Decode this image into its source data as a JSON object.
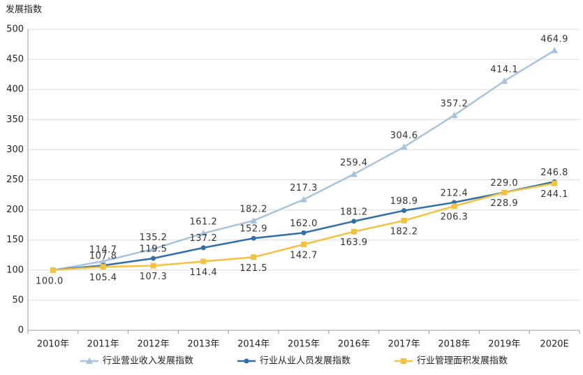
{
  "chart_data": {
    "type": "line",
    "y_axis_title": "发展指数",
    "categories": [
      "2010年",
      "2011年",
      "2012年",
      "2013年",
      "2014年",
      "2015年",
      "2016年",
      "2017年",
      "2018年",
      "2019年",
      "2020E"
    ],
    "ylim": [
      0,
      500
    ],
    "yticks": [
      0,
      50,
      100,
      150,
      200,
      250,
      300,
      350,
      400,
      450,
      500
    ],
    "grid": true,
    "legend": "bottom",
    "series": [
      {
        "name": "行业营业收入发展指数",
        "color": "#a8c3e0",
        "marker": "triangle",
        "values": [
          100,
          114.7,
          135.2,
          161.2,
          182.2,
          217.3,
          259.4,
          304.6,
          357.2,
          414.1,
          464.9
        ],
        "value_labels": [
          "100.0",
          "114.7",
          "135.2",
          "161.2",
          "182.2",
          "217.3",
          "259.4",
          "304.6",
          "357.2",
          "414.1",
          "464.9"
        ]
      },
      {
        "name": "行业从业人员发展指数",
        "color": "#2f6ea6",
        "marker": "circle",
        "values": [
          100,
          107.8,
          119.5,
          137.2,
          152.9,
          162.0,
          181.2,
          198.9,
          212.4,
          229.0,
          246.8
        ],
        "value_labels": [
          null,
          "107.8",
          "119.5",
          "137.2",
          "152.9",
          "162.0",
          "181.2",
          "198.9",
          "212.4",
          "229.0",
          "246.8"
        ]
      },
      {
        "name": "行业管理面积发展指数",
        "color": "#f4c240",
        "marker": "square",
        "values": [
          100,
          105.4,
          107.3,
          114.4,
          121.5,
          142.7,
          163.9,
          182.2,
          206.3,
          228.9,
          244.1
        ],
        "value_labels": [
          null,
          "105.4",
          "107.3",
          "114.4",
          "121.5",
          "142.7",
          "163.9",
          "182.2",
          "206.3",
          "228.9",
          "244.1"
        ]
      }
    ]
  }
}
